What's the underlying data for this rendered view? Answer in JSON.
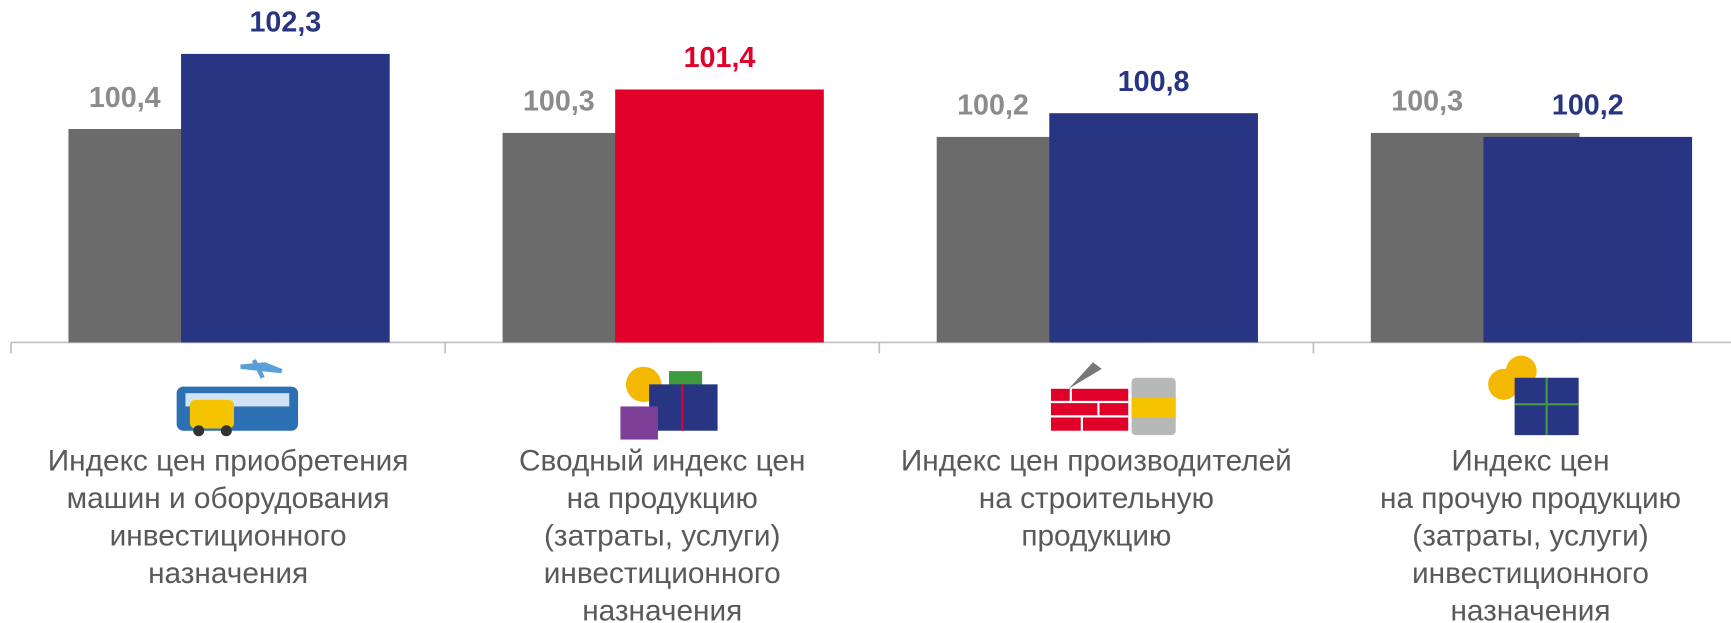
{
  "chart_data": {
    "type": "bar",
    "categories": [
      [
        "Индекс цен приобретения",
        "машин и оборудования",
        "инвестиционного",
        "назначения"
      ],
      [
        "Сводный индекс цен",
        "на продукцию",
        "(затраты, услуги)",
        "инвестиционного",
        "назначения"
      ],
      [
        "Индекс цен производителей",
        "на строительную",
        "продукцию"
      ],
      [
        "Индекс цен",
        "на прочую продукцию",
        "(затраты, услуги)",
        "инвестиционного",
        "назначения"
      ]
    ],
    "series": [
      {
        "color": "#6b6b6b",
        "label_color": "#8c8c8c",
        "values": [
          100.4,
          100.3,
          100.2,
          100.3
        ],
        "value_labels": [
          "100,4",
          "100,3",
          "100,2",
          "100,3"
        ]
      },
      {
        "colors": [
          "#283583",
          "#e1002a",
          "#283583",
          "#283583"
        ],
        "values": [
          102.3,
          101.4,
          100.8,
          100.2
        ],
        "value_labels": [
          "102,3",
          "101,4",
          "100,8",
          "100,2"
        ]
      }
    ],
    "ylim": [
      95,
      103
    ]
  }
}
